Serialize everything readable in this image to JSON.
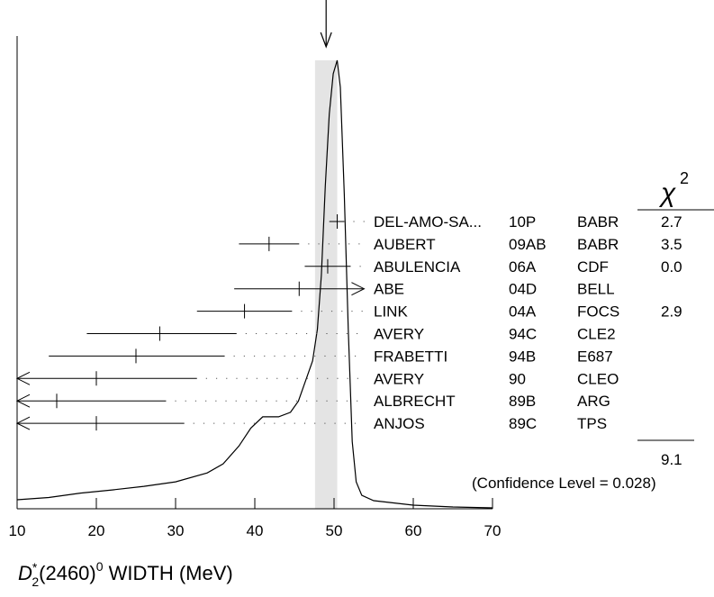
{
  "chart_data": {
    "type": "ideogram",
    "quantity": "WIDTH",
    "unit": "MeV",
    "xlim": [
      10,
      70
    ],
    "xticks": [
      "10",
      "20",
      "30",
      "40",
      "50",
      "60",
      "70"
    ],
    "chi2_header": "χ",
    "chi2_sup": "2",
    "average_band": [
      47.6,
      50.4
    ],
    "average_marker": 49.0,
    "measurements": [
      {
        "author": "DEL-AMO-SA...",
        "year": "10P",
        "tech": "BABR",
        "value": 50.4,
        "low": 49.4,
        "high": 51.3,
        "chi2": "2.7"
      },
      {
        "author": "AUBERT",
        "year": "09AB",
        "tech": "BABR",
        "value": 41.8,
        "low": 38.0,
        "high": 45.6,
        "chi2": "3.5"
      },
      {
        "author": "ABULENCIA",
        "year": "06A",
        "tech": "CDF",
        "value": 49.2,
        "low": 46.3,
        "high": 52.1,
        "chi2": "0.0"
      },
      {
        "author": "ABE",
        "year": "04D",
        "tech": "BELL",
        "value": 45.6,
        "low": 37.4,
        "high": 53.8,
        "chi2": "",
        "arrow_right": true
      },
      {
        "author": "LINK",
        "year": "04A",
        "tech": "FOCS",
        "value": 38.7,
        "low": 32.7,
        "high": 44.7,
        "chi2": "2.9"
      },
      {
        "author": "AVERY",
        "year": "94C",
        "tech": "CLE2",
        "value": 28.0,
        "low": 18.8,
        "high": 37.7,
        "chi2": ""
      },
      {
        "author": "FRABETTI",
        "year": "94B",
        "tech": "E687",
        "value": 25.0,
        "low": 14.0,
        "high": 36.2,
        "chi2": ""
      },
      {
        "author": "AVERY",
        "year": "90",
        "tech": "CLEO",
        "value": 20.0,
        "low": 10.0,
        "high": 32.7,
        "chi2": "",
        "arrow_left": true
      },
      {
        "author": "ALBRECHT",
        "year": "89B",
        "tech": "ARG",
        "value": 15.0,
        "low": 10.0,
        "high": 28.8,
        "chi2": "",
        "arrow_left": true
      },
      {
        "author": "ANJOS",
        "year": "89C",
        "tech": "TPS",
        "value": 20.0,
        "low": 10.0,
        "high": 31.1,
        "chi2": "",
        "arrow_left": true
      }
    ],
    "chi2_total": "9.1",
    "confidence_level": "(Confidence Level = 0.028)",
    "curve": [
      [
        10,
        0.02
      ],
      [
        14,
        0.025
      ],
      [
        18,
        0.035
      ],
      [
        22,
        0.042
      ],
      [
        26,
        0.05
      ],
      [
        30,
        0.06
      ],
      [
        34,
        0.08
      ],
      [
        36,
        0.1
      ],
      [
        38,
        0.14
      ],
      [
        39.5,
        0.18
      ],
      [
        41,
        0.205
      ],
      [
        43,
        0.205
      ],
      [
        44.5,
        0.215
      ],
      [
        45.5,
        0.24
      ],
      [
        46.5,
        0.29
      ],
      [
        47.3,
        0.33
      ],
      [
        47.9,
        0.4
      ],
      [
        48.4,
        0.52
      ],
      [
        48.9,
        0.72
      ],
      [
        49.4,
        0.88
      ],
      [
        49.9,
        0.97
      ],
      [
        50.4,
        1.0
      ],
      [
        50.8,
        0.94
      ],
      [
        51.3,
        0.7
      ],
      [
        51.8,
        0.4
      ],
      [
        52.3,
        0.15
      ],
      [
        52.8,
        0.06
      ],
      [
        53.5,
        0.03
      ],
      [
        55,
        0.018
      ],
      [
        60,
        0.008
      ],
      [
        65,
        0.004
      ],
      [
        70,
        0.002
      ]
    ]
  },
  "xlabel": {
    "main": "D",
    "sup": "*",
    "sub": "2",
    "state": "(2460)",
    "state_sup": "0",
    "rest": " WIDTH (MeV)"
  }
}
